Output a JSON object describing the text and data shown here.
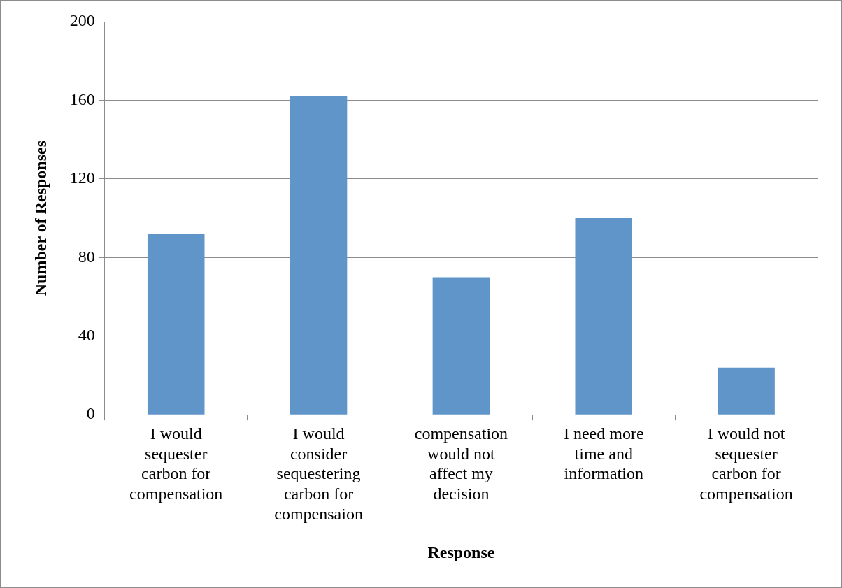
{
  "chart_data": {
    "type": "bar",
    "xlabel": "Response",
    "ylabel": "Number of Responses",
    "categories": [
      "I would sequester carbon for compensation",
      "I would consider sequestering carbon for compensaion",
      "compensation would not affect my decision",
      "I need more time and information",
      "I would not sequester carbon for compensation"
    ],
    "values": [
      92,
      162,
      70,
      100,
      24
    ],
    "color": "#5f95c8",
    "ylim": [
      0,
      200
    ],
    "yticks": [
      0,
      40,
      80,
      120,
      160,
      200
    ],
    "grid": "y",
    "legend": false
  }
}
